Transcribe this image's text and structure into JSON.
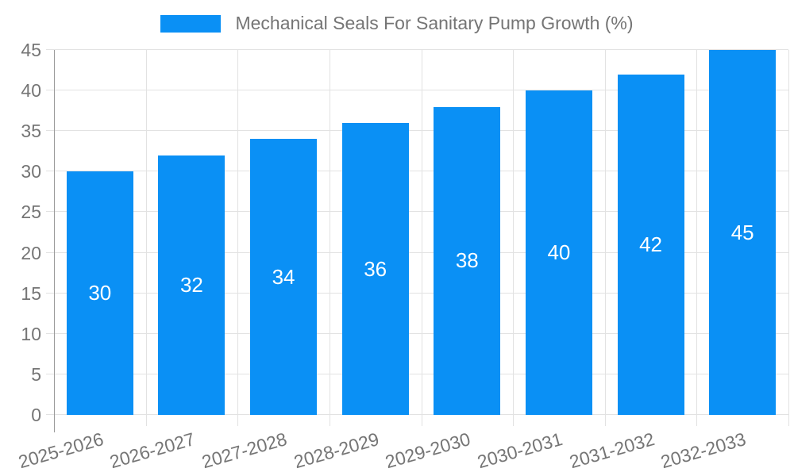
{
  "chart_data": {
    "type": "bar",
    "title": "Mechanical Seals For Sanitary Pump Growth (%)",
    "legend_position": "top",
    "categories": [
      "2025-2026",
      "2026-2027",
      "2027-2028",
      "2028-2029",
      "2029-2030",
      "2030-2031",
      "2031-2032",
      "2032-2033"
    ],
    "series": [
      {
        "name": "Mechanical Seals For Sanitary Pump Growth (%)",
        "values": [
          30,
          32,
          34,
          36,
          38,
          40,
          42,
          45
        ]
      }
    ],
    "value_labels_shown": [
      30,
      32,
      34,
      36,
      38,
      40,
      42,
      45
    ],
    "xlabel": "",
    "ylabel": "",
    "ylim": [
      0,
      45
    ],
    "ytick_step": 5,
    "yticks": [
      0,
      5,
      10,
      15,
      20,
      25,
      30,
      35,
      40,
      45
    ],
    "grid": true,
    "x_label_rotation_deg": -16,
    "colors": {
      "bar": "#0a90f5",
      "value_label": "#ffffff",
      "axis_text": "#757575",
      "grid": "#e2e2e2",
      "axis_line": "#9a9a9a",
      "background": "#ffffff"
    }
  }
}
